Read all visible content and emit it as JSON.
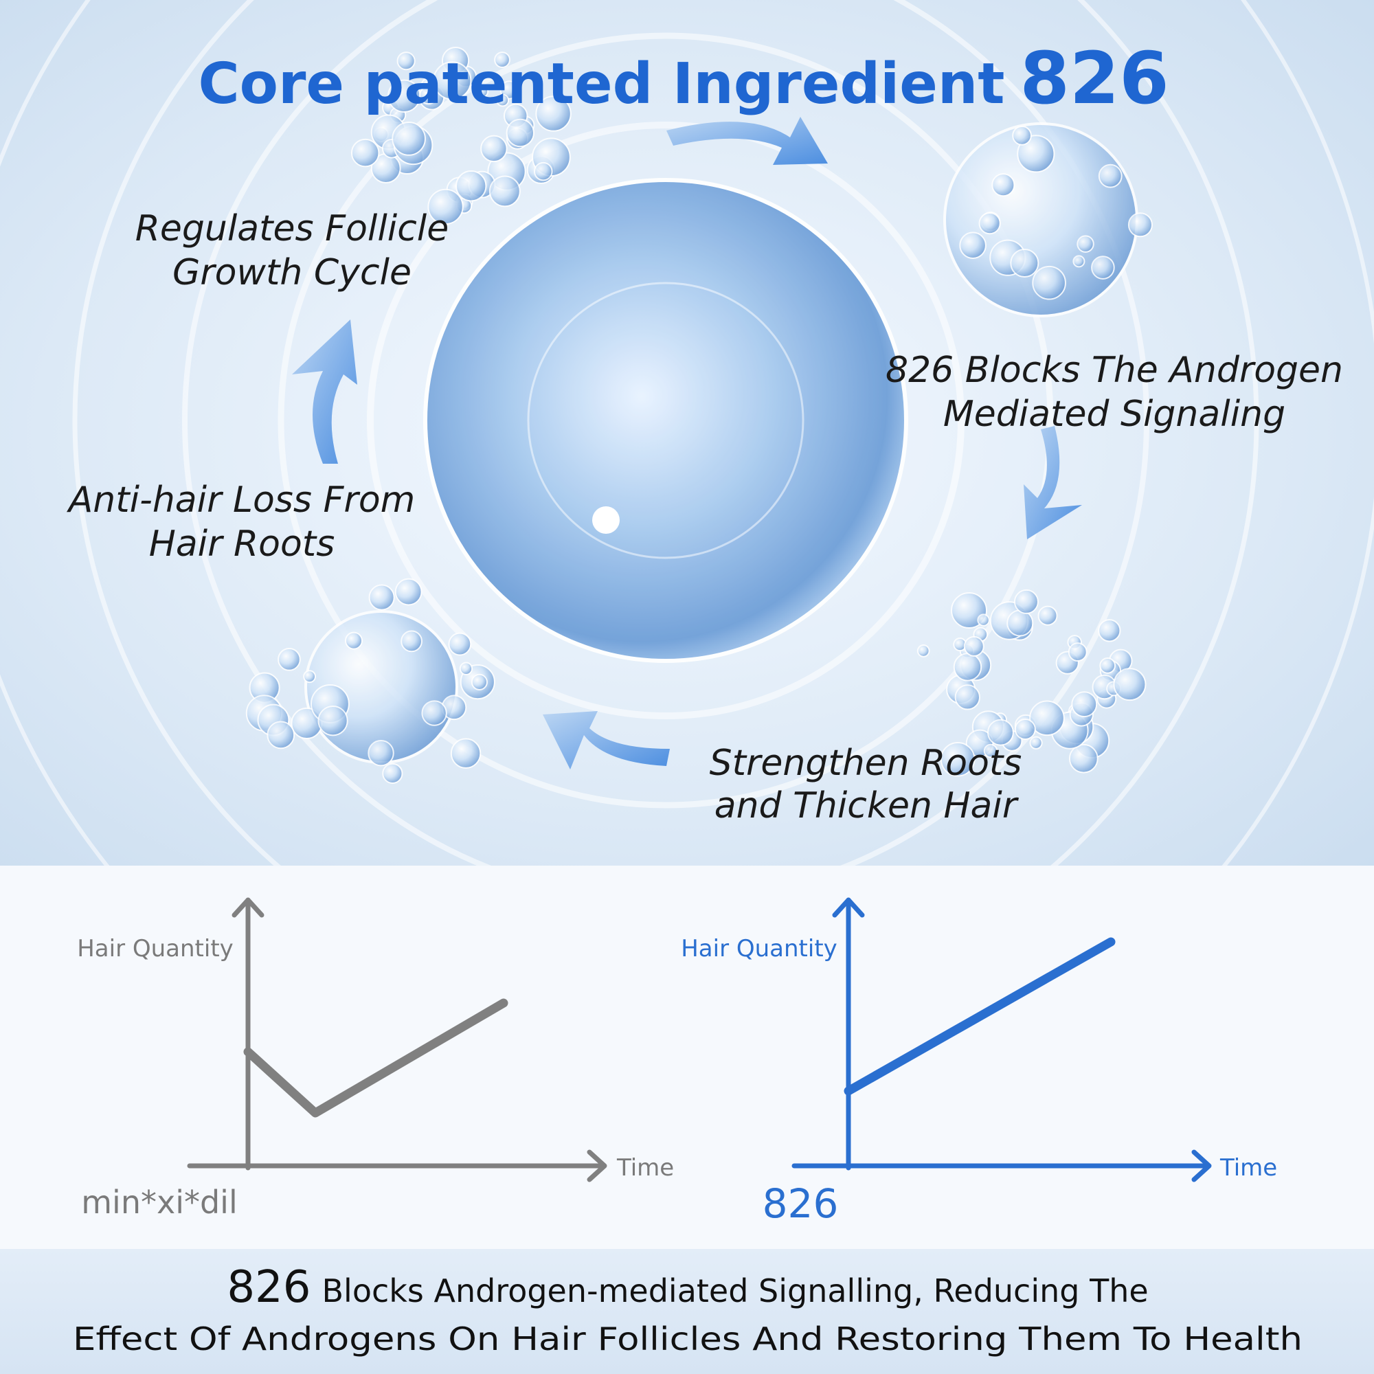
{
  "header": {
    "title": "Core patented Ingredient",
    "highlight": "826"
  },
  "steps": [
    {
      "lines": [
        "Regulates Follicle",
        "Growth Cycle"
      ]
    },
    {
      "lines": [
        "826 Blocks The Androgen",
        "Mediated Signaling"
      ]
    },
    {
      "lines": [
        "Anti-hair Loss From",
        "Hair Roots"
      ]
    },
    {
      "lines": [
        "Strengthen Roots",
        "and Thicken Hair"
      ]
    }
  ],
  "comparison": [
    {
      "y_label": "Hair Quantity",
      "x_label": "Time",
      "name": "min*xi*dil"
    },
    {
      "y_label": "Hair Quantity",
      "x_label": "Time",
      "name": "826"
    }
  ],
  "footer": {
    "highlight": "826",
    "line1": "Blocks Androgen-mediated Signalling, Reducing The",
    "line2": "Effect Of Androgens On Hair Follicles And Restoring Them To Health"
  }
}
